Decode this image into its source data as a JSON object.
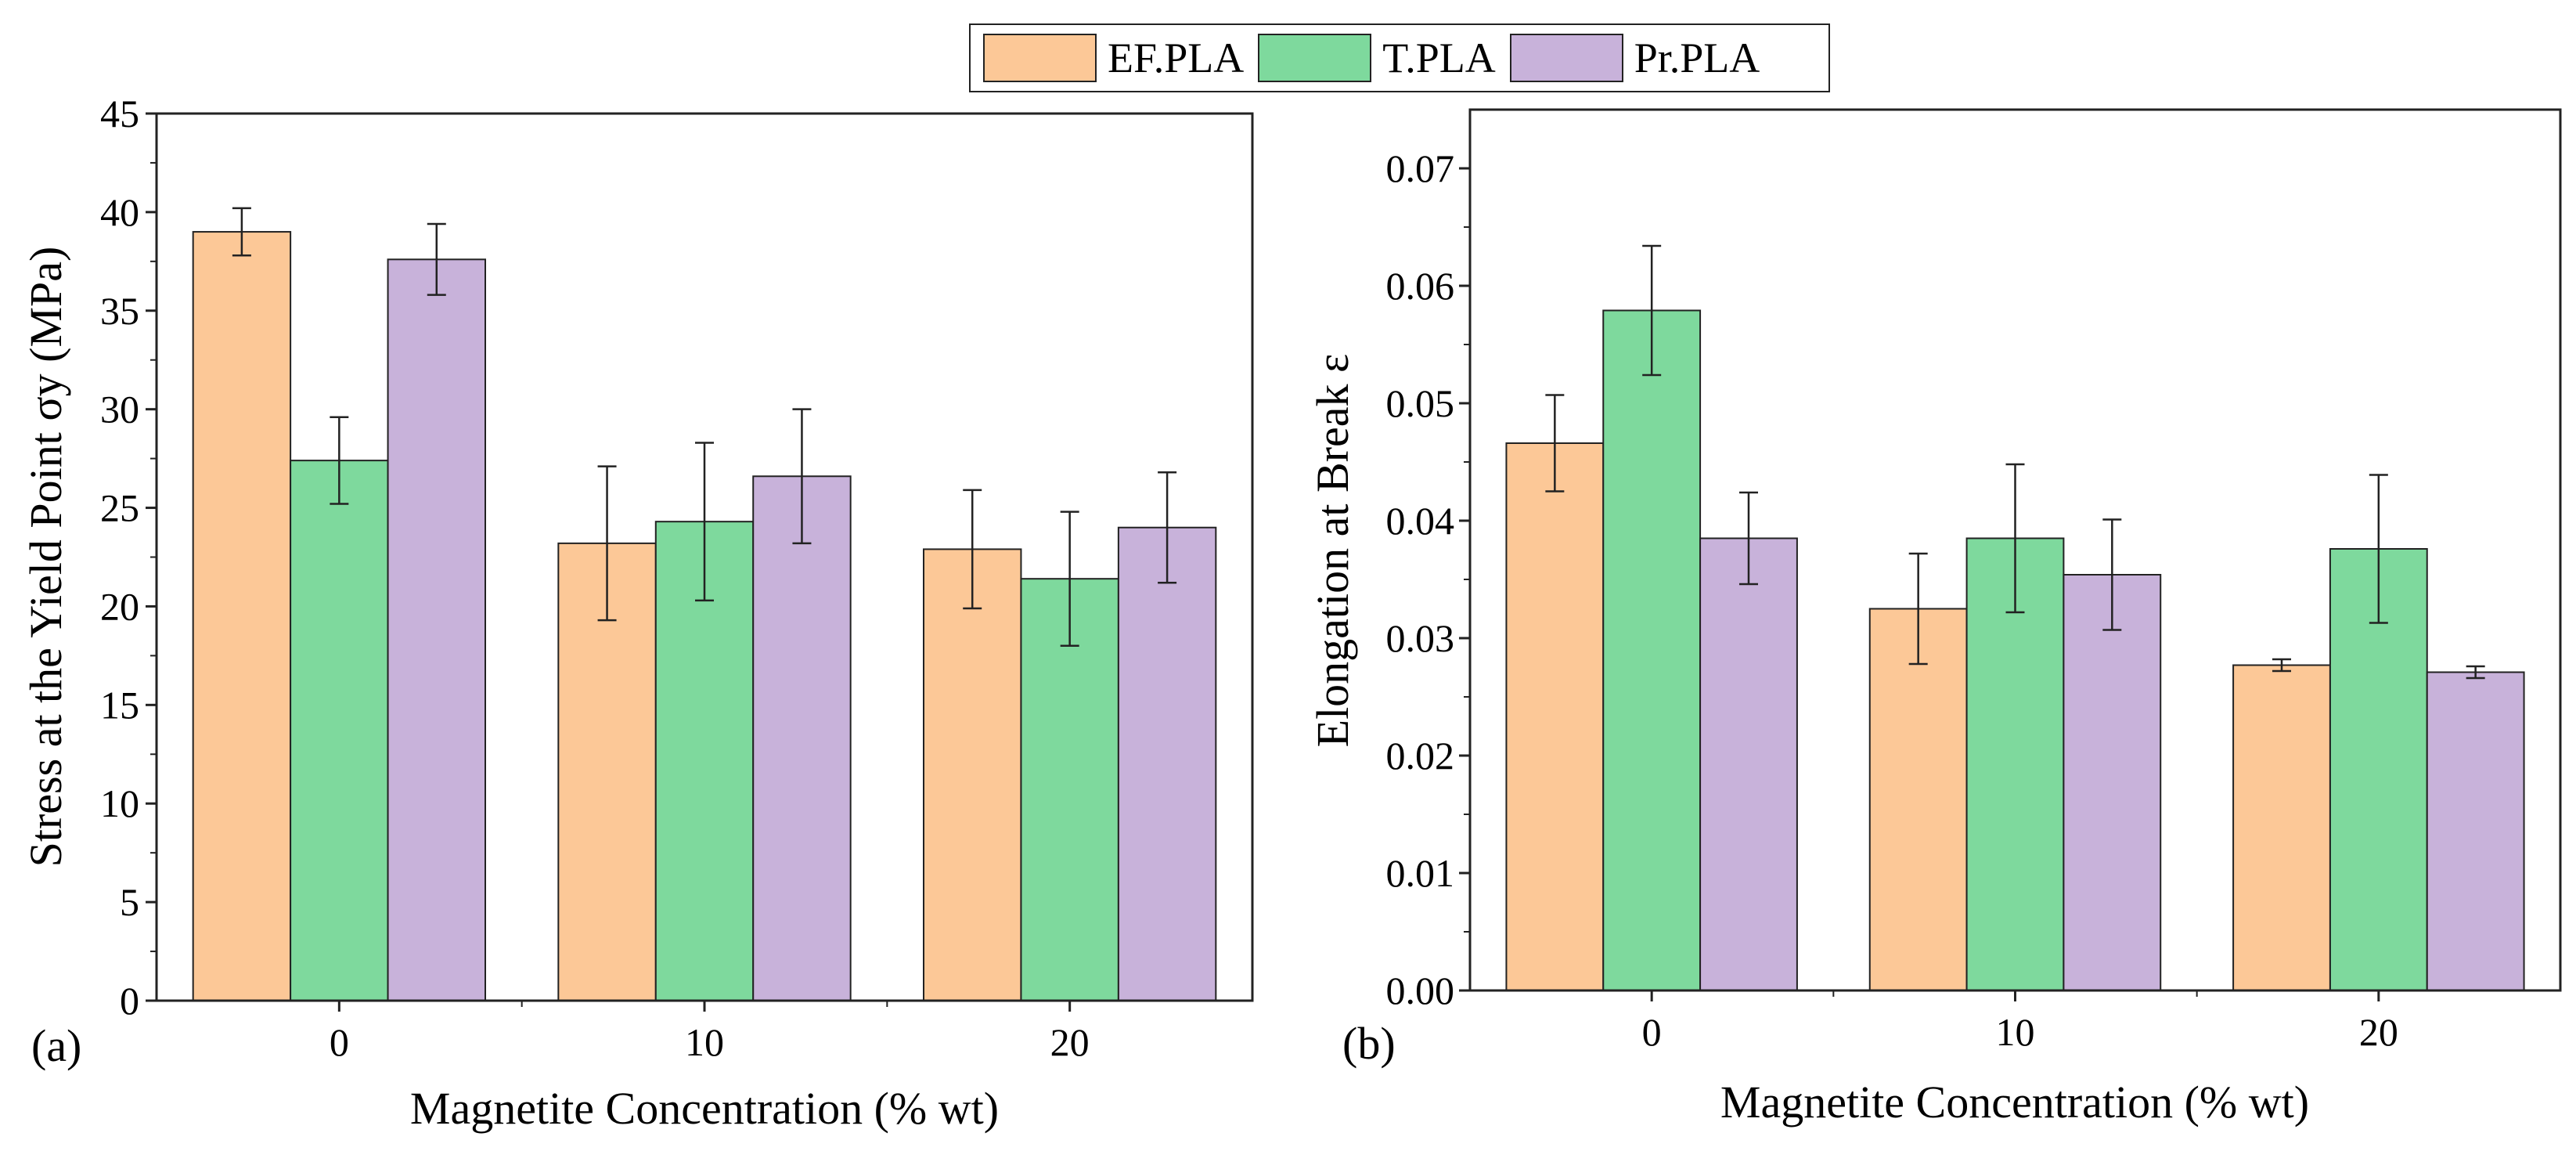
{
  "legend": [
    {
      "name": "EF.PLA",
      "color": "#FCC897"
    },
    {
      "name": "T.PLA",
      "color": "#7ED99D"
    },
    {
      "name": "Pr.PLA",
      "color": "#C8B2DA"
    }
  ],
  "chart_data": [
    {
      "panel_label": "(a)",
      "type": "bar",
      "title": "",
      "xlabel": "Magnetite Concentration (% wt)",
      "ylabel": "Stress at the Yield Point σy (MPa)",
      "categories": [
        "0",
        "10",
        "20"
      ],
      "ylim": [
        0,
        45
      ],
      "yticks": [
        0,
        5,
        10,
        15,
        20,
        25,
        30,
        35,
        40,
        45
      ],
      "ytick_labels": [
        "0",
        "5",
        "10",
        "15",
        "20",
        "25",
        "30",
        "35",
        "40",
        "45"
      ],
      "series": [
        {
          "name": "EF.PLA",
          "values": [
            39.0,
            23.2,
            22.9
          ],
          "errors": [
            1.2,
            3.9,
            3.0
          ]
        },
        {
          "name": "T.PLA",
          "values": [
            27.4,
            24.3,
            21.4
          ],
          "errors": [
            2.2,
            4.0,
            3.4
          ]
        },
        {
          "name": "Pr.PLA",
          "values": [
            37.6,
            26.6,
            24.0
          ],
          "errors": [
            1.8,
            3.4,
            2.8
          ]
        }
      ]
    },
    {
      "panel_label": "(b)",
      "type": "bar",
      "title": "",
      "xlabel": "Magnetite Concentration (% wt)",
      "ylabel": "Elongation at Break ε",
      "categories": [
        "0",
        "10",
        "20"
      ],
      "ylim": [
        0,
        0.075
      ],
      "yticks": [
        0,
        0.01,
        0.02,
        0.03,
        0.04,
        0.05,
        0.06,
        0.07
      ],
      "ytick_labels": [
        "0.00",
        "0.01",
        "0.02",
        "0.03",
        "0.04",
        "0.05",
        "0.06",
        "0.07"
      ],
      "series": [
        {
          "name": "EF.PLA",
          "values": [
            0.0466,
            0.0325,
            0.0277
          ],
          "errors": [
            0.0041,
            0.0047,
            0.0005
          ]
        },
        {
          "name": "T.PLA",
          "values": [
            0.0579,
            0.0385,
            0.0376
          ],
          "errors": [
            0.0055,
            0.0063,
            0.0063
          ]
        },
        {
          "name": "Pr.PLA",
          "values": [
            0.0385,
            0.0354,
            0.0271
          ],
          "errors": [
            0.0039,
            0.0047,
            0.0005
          ]
        }
      ]
    }
  ]
}
